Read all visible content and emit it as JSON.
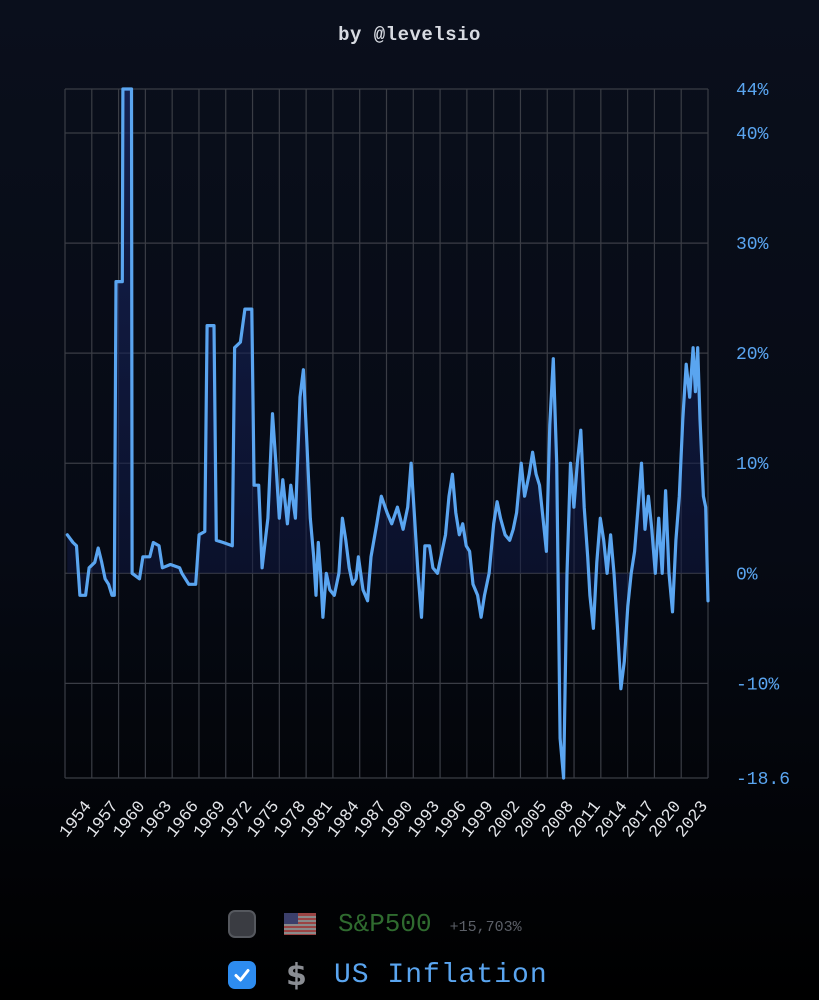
{
  "byline": "by @levelsio",
  "chart_data": {
    "type": "line",
    "series": [
      {
        "name": "US Inflation",
        "color": "#5aa5f0",
        "points": [
          [
            1953.0,
            3.5
          ],
          [
            1953.5,
            2.8
          ],
          [
            1953.8,
            2.5
          ],
          [
            1954.1,
            -2.0
          ],
          [
            1954.6,
            -2.0
          ],
          [
            1954.9,
            0.5
          ],
          [
            1955.4,
            1.0
          ],
          [
            1955.7,
            2.3
          ],
          [
            1956.0,
            1.0
          ],
          [
            1956.3,
            -0.5
          ],
          [
            1956.6,
            -1.0
          ],
          [
            1956.9,
            -2.0
          ],
          [
            1957.1,
            -2.0
          ],
          [
            1957.25,
            26.5
          ],
          [
            1957.8,
            26.5
          ],
          [
            1957.85,
            44
          ],
          [
            1958.6,
            44
          ],
          [
            1958.65,
            0
          ],
          [
            1959.3,
            -0.5
          ],
          [
            1959.6,
            1.5
          ],
          [
            1960.2,
            1.5
          ],
          [
            1960.5,
            2.8
          ],
          [
            1961.0,
            2.5
          ],
          [
            1961.3,
            0.5
          ],
          [
            1962.0,
            0.8
          ],
          [
            1962.8,
            0.5
          ],
          [
            1963.0,
            0.0
          ],
          [
            1963.6,
            -1.0
          ],
          [
            1964.2,
            -1.0
          ],
          [
            1964.5,
            3.5
          ],
          [
            1965.0,
            3.8
          ],
          [
            1965.2,
            22.5
          ],
          [
            1965.8,
            22.5
          ],
          [
            1966.0,
            3.0
          ],
          [
            1966.6,
            2.8
          ],
          [
            1967.4,
            2.5
          ],
          [
            1967.6,
            20.5
          ],
          [
            1968.1,
            21.0
          ],
          [
            1968.5,
            24.0
          ],
          [
            1969.1,
            24.0
          ],
          [
            1969.3,
            8.0
          ],
          [
            1969.7,
            8.0
          ],
          [
            1970.0,
            0.5
          ],
          [
            1970.5,
            5.0
          ],
          [
            1970.9,
            14.5
          ],
          [
            1971.2,
            10.0
          ],
          [
            1971.5,
            5.0
          ],
          [
            1971.8,
            8.5
          ],
          [
            1972.2,
            4.5
          ],
          [
            1972.5,
            8.0
          ],
          [
            1972.9,
            5.0
          ],
          [
            1973.3,
            16.0
          ],
          [
            1973.6,
            18.5
          ],
          [
            1973.9,
            12.0
          ],
          [
            1974.2,
            5.0
          ],
          [
            1974.5,
            1.5
          ],
          [
            1974.7,
            -2.0
          ],
          [
            1974.9,
            2.8
          ],
          [
            1975.1,
            0.0
          ],
          [
            1975.3,
            -4.0
          ],
          [
            1975.6,
            0.0
          ],
          [
            1975.9,
            -1.5
          ],
          [
            1976.3,
            -2.0
          ],
          [
            1976.7,
            0.0
          ],
          [
            1977.0,
            5.0
          ],
          [
            1977.3,
            3.0
          ],
          [
            1977.6,
            0.5
          ],
          [
            1977.9,
            -1.0
          ],
          [
            1978.2,
            -0.5
          ],
          [
            1978.4,
            1.5
          ],
          [
            1978.8,
            -1.5
          ],
          [
            1979.2,
            -2.5
          ],
          [
            1979.5,
            1.5
          ],
          [
            1980.0,
            4.5
          ],
          [
            1980.4,
            7.0
          ],
          [
            1980.9,
            5.5
          ],
          [
            1981.3,
            4.5
          ],
          [
            1981.8,
            6.0
          ],
          [
            1982.3,
            4.0
          ],
          [
            1982.7,
            6.0
          ],
          [
            1983.0,
            10.0
          ],
          [
            1983.3,
            5.0
          ],
          [
            1983.6,
            0.0
          ],
          [
            1983.9,
            -4.0
          ],
          [
            1984.2,
            2.5
          ],
          [
            1984.6,
            2.5
          ],
          [
            1984.9,
            0.5
          ],
          [
            1985.3,
            0.0
          ],
          [
            1985.6,
            1.5
          ],
          [
            1986.0,
            3.5
          ],
          [
            1986.3,
            7.0
          ],
          [
            1986.6,
            9.0
          ],
          [
            1986.9,
            5.5
          ],
          [
            1987.2,
            3.5
          ],
          [
            1987.5,
            4.5
          ],
          [
            1987.8,
            2.5
          ],
          [
            1988.1,
            2.0
          ],
          [
            1988.4,
            -1.0
          ],
          [
            1988.8,
            -2.0
          ],
          [
            1989.1,
            -4.0
          ],
          [
            1989.4,
            -2.0
          ],
          [
            1989.8,
            0.0
          ],
          [
            1990.2,
            4.5
          ],
          [
            1990.5,
            6.5
          ],
          [
            1990.8,
            5.0
          ],
          [
            1991.2,
            3.5
          ],
          [
            1991.6,
            3.0
          ],
          [
            1991.9,
            4.0
          ],
          [
            1992.2,
            5.5
          ],
          [
            1992.6,
            10.0
          ],
          [
            1992.9,
            7.0
          ],
          [
            1993.3,
            9.0
          ],
          [
            1993.6,
            11.0
          ],
          [
            1993.9,
            9.0
          ],
          [
            1994.2,
            8.0
          ],
          [
            1994.5,
            5.0
          ],
          [
            1994.8,
            2.0
          ],
          [
            1995.1,
            13.5
          ],
          [
            1995.4,
            19.5
          ],
          [
            1995.7,
            10.0
          ],
          [
            1996.0,
            -15.0
          ],
          [
            1996.3,
            -18.6
          ],
          [
            1996.6,
            0.0
          ],
          [
            1996.9,
            10.0
          ],
          [
            1997.2,
            6.0
          ],
          [
            1997.5,
            10.0
          ],
          [
            1997.8,
            13.0
          ],
          [
            1998.1,
            6.0
          ],
          [
            1998.4,
            1.5
          ],
          [
            1998.6,
            -2.0
          ],
          [
            1998.9,
            -5.0
          ],
          [
            1999.2,
            1.0
          ],
          [
            1999.5,
            5.0
          ],
          [
            1999.8,
            3.0
          ],
          [
            2000.1,
            0.0
          ],
          [
            2000.4,
            3.5
          ],
          [
            2000.7,
            0.0
          ],
          [
            2001.0,
            -5.0
          ],
          [
            2001.3,
            -10.5
          ],
          [
            2001.6,
            -8.0
          ],
          [
            2001.9,
            -3.0
          ],
          [
            2002.2,
            0.0
          ],
          [
            2002.5,
            2.0
          ],
          [
            2002.8,
            6.0
          ],
          [
            2003.1,
            10.0
          ],
          [
            2003.4,
            4.0
          ],
          [
            2003.7,
            7.0
          ],
          [
            2004.0,
            4.0
          ],
          [
            2004.3,
            0.0
          ],
          [
            2004.6,
            5.0
          ],
          [
            2004.9,
            0.0
          ],
          [
            2005.2,
            7.5
          ],
          [
            2005.5,
            0.0
          ],
          [
            2005.8,
            -3.5
          ],
          [
            2006.1,
            3.0
          ],
          [
            2006.4,
            7.0
          ],
          [
            2006.7,
            14.0
          ],
          [
            2007.0,
            19.0
          ],
          [
            2007.3,
            16.0
          ],
          [
            2007.6,
            20.5
          ],
          [
            2007.8,
            16.5
          ],
          [
            2008.0,
            20.5
          ],
          [
            2008.2,
            14.0
          ],
          [
            2008.5,
            7.0
          ],
          [
            2008.7,
            6.0
          ],
          [
            2008.9,
            -2.5
          ]
        ]
      }
    ],
    "x_range": [
      1952.8,
      2008.9
    ],
    "y_range": [
      -18.6,
      44
    ],
    "x_ticks": [
      "1954",
      "1957",
      "1960",
      "1963",
      "1966",
      "1969",
      "1972",
      "1975",
      "1978",
      "1981",
      "1984",
      "1987",
      "1990",
      "1993",
      "1996",
      "1999",
      "2002",
      "2005",
      "2008",
      "2011",
      "2014",
      "2017",
      "2020",
      "2023"
    ],
    "y_ticks": [
      {
        "label": "44%",
        "value": 44
      },
      {
        "label": "40%",
        "value": 40
      },
      {
        "label": "30%",
        "value": 30
      },
      {
        "label": "20%",
        "value": 20
      },
      {
        "label": "10%",
        "value": 10
      },
      {
        "label": "0%",
        "value": 0
      },
      {
        "label": "-10%",
        "value": -10
      },
      {
        "label": "-18.6",
        "value": -18.6
      }
    ],
    "grid": true,
    "area_fill": true
  },
  "legend": {
    "sp500": {
      "label": "S&P500",
      "gain": "+15,703%",
      "checked": false,
      "icon": "us-flag-icon"
    },
    "inflation": {
      "label": "US Inflation",
      "checked": true,
      "icon": "dollar-icon",
      "dollar_glyph": "$"
    }
  }
}
